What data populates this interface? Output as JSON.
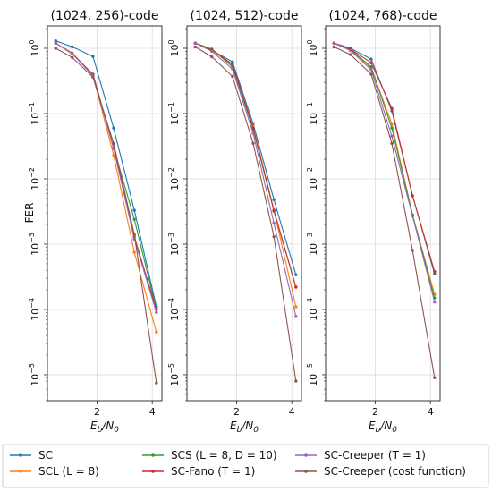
{
  "chart_data": {
    "type": "line",
    "yscale": "log",
    "grid": true,
    "legend_position": "bottom",
    "ylabel": "FER",
    "xlabel_main": "E",
    "xlabel_sub": "b",
    "xlabel_tail": "/N",
    "xlabel_sub2": "0",
    "xlim": [
      0.2,
      4.35
    ],
    "ylim": [
      4e-06,
      2.2
    ],
    "xticks": [
      2,
      4
    ],
    "yticks": [
      {
        "value": 1,
        "base": "10",
        "exp": "0"
      },
      {
        "value": 0.1,
        "base": "10",
        "exp": "−1"
      },
      {
        "value": 0.01,
        "base": "10",
        "exp": "−2"
      },
      {
        "value": 0.001,
        "base": "10",
        "exp": "−3"
      },
      {
        "value": 0.0001,
        "base": "10",
        "exp": "−4"
      },
      {
        "value": 1e-05,
        "base": "10",
        "exp": "−5"
      }
    ],
    "x": [
      0.5,
      1.1,
      1.85,
      2.6,
      3.35,
      4.15
    ],
    "series_styles": [
      {
        "color": "#1f77b4"
      },
      {
        "color": "#ff7f0e"
      },
      {
        "color": "#2ca02c"
      },
      {
        "color": "#d62728"
      },
      {
        "color": "#9467bd"
      },
      {
        "color": "#8c564b"
      }
    ],
    "legend": [
      {
        "label": "SC",
        "color": "#1f77b4"
      },
      {
        "label": "SCL (L = 8)",
        "color": "#ff7f0e"
      },
      {
        "label": "SCS (L = 8, D = 10)",
        "color": "#2ca02c"
      },
      {
        "label": "SC-Fano (T = 1)",
        "color": "#d62728"
      },
      {
        "label": "SC-Creeper (T = 1)",
        "color": "#9467bd"
      },
      {
        "label": "SC-Creeper (cost function)",
        "color": "#8c564b"
      }
    ],
    "panels": [
      {
        "title": "(1024, 256)-code",
        "series": [
          {
            "values": [
              1.3,
              1.05,
              0.75,
              0.06,
              0.0033,
              0.00011
            ]
          },
          {
            "values": [
              1.2,
              0.85,
              0.38,
              0.023,
              0.00075,
              4.5e-05
            ]
          },
          {
            "values": [
              1.2,
              0.82,
              0.4,
              0.03,
              0.0024,
              0.0001
            ]
          },
          {
            "values": [
              1.2,
              0.82,
              0.4,
              0.03,
              0.0013,
              0.0001
            ]
          },
          {
            "values": [
              1.2,
              0.82,
              0.38,
              0.029,
              0.0012,
              9e-05
            ]
          },
          {
            "values": [
              1.0,
              0.72,
              0.36,
              0.035,
              0.0014,
              7.5e-06
            ]
          }
        ]
      },
      {
        "title": "(1024, 512)-code",
        "series": [
          {
            "values": [
              1.2,
              0.93,
              0.62,
              0.07,
              0.0048,
              0.00034
            ]
          },
          {
            "values": [
              1.2,
              0.97,
              0.55,
              0.063,
              0.0033,
              0.00011
            ]
          },
          {
            "values": [
              1.2,
              0.97,
              0.52,
              0.058,
              0.0032,
              0.00022
            ]
          },
          {
            "values": [
              1.2,
              0.94,
              0.57,
              0.06,
              0.0033,
              0.00022
            ]
          },
          {
            "values": [
              1.2,
              0.9,
              0.48,
              0.05,
              0.0021,
              7.8e-05
            ]
          },
          {
            "values": [
              1.05,
              0.74,
              0.37,
              0.035,
              0.0013,
              8e-06
            ]
          }
        ]
      },
      {
        "title": "(1024, 768)-code",
        "series": [
          {
            "values": [
              1.2,
              1.0,
              0.68,
              0.11,
              0.0055,
              0.00035
            ]
          },
          {
            "values": [
              1.2,
              0.95,
              0.5,
              0.07,
              0.0028,
              0.00017
            ]
          },
          {
            "values": [
              1.2,
              0.95,
              0.52,
              0.06,
              0.0028,
              0.00015
            ]
          },
          {
            "values": [
              1.2,
              0.97,
              0.6,
              0.12,
              0.0055,
              0.00038
            ]
          },
          {
            "values": [
              1.2,
              0.92,
              0.47,
              0.045,
              0.0027,
              0.00013
            ]
          },
          {
            "values": [
              1.05,
              0.8,
              0.4,
              0.035,
              0.0008,
              9e-06
            ]
          }
        ]
      }
    ]
  }
}
